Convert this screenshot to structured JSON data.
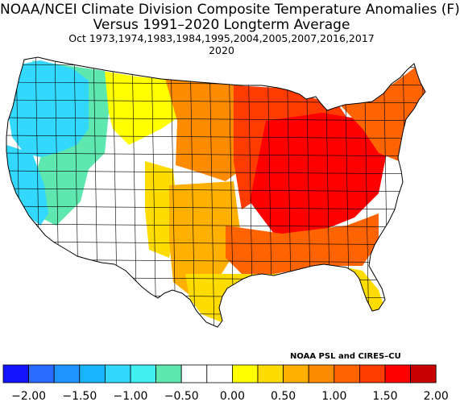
{
  "title": {
    "line1": "NOAA/NCEI Climate Division Composite Temperature Anomalies (F)",
    "line2": "Versus 1991–2020 Longterm Average",
    "line3": "Oct   1973,1974,1983,1984,1995,2004,2005,2007,2016,2017",
    "line4": "2020"
  },
  "credit": "NOAA PSL and CIRES–CU",
  "legend": {
    "colors": [
      "#1414ff",
      "#2a6cff",
      "#1f96ff",
      "#19b4ff",
      "#33d8ff",
      "#40f0f0",
      "#5ee8b0",
      "#ffffff",
      "#ffffff",
      "#ffff00",
      "#ffdc00",
      "#ffb000",
      "#ff8c00",
      "#ff6400",
      "#ff3c00",
      "#ff0000",
      "#c80000"
    ],
    "tick_labels": [
      "−2.00",
      "−1.50",
      "−1.00",
      "−0.50",
      "0.00",
      "0.50",
      "1.00",
      "1.50",
      "2.00"
    ]
  },
  "map": {
    "regions": [
      {
        "name": "pacific-northwest-coast",
        "anomaly": -1.0,
        "color": "#33d8ff"
      },
      {
        "name": "california-coast",
        "anomaly": -0.9,
        "color": "#33d8ff"
      },
      {
        "name": "interior-northwest",
        "anomaly": -0.6,
        "color": "#5ee8b0"
      },
      {
        "name": "great-basin-southwest",
        "anomaly": 0.0,
        "color": "#ffffff"
      },
      {
        "name": "northern-rockies",
        "anomaly": 0.3,
        "color": "#ffff00"
      },
      {
        "name": "southern-rockies",
        "anomaly": 0.5,
        "color": "#ffdc00"
      },
      {
        "name": "northern-plains",
        "anomaly": 1.0,
        "color": "#ff8c00"
      },
      {
        "name": "southern-plains",
        "anomaly": 0.8,
        "color": "#ffb000"
      },
      {
        "name": "great-lakes-midwest",
        "anomaly": 1.6,
        "color": "#ff3c00"
      },
      {
        "name": "ohio-valley",
        "anomaly": 1.9,
        "color": "#ff0000"
      },
      {
        "name": "southeast",
        "anomaly": 1.3,
        "color": "#ff6400"
      },
      {
        "name": "gulf-coast-florida",
        "anomaly": 0.6,
        "color": "#ffdc00"
      },
      {
        "name": "northeast",
        "anomaly": 1.3,
        "color": "#ff6400"
      }
    ]
  }
}
